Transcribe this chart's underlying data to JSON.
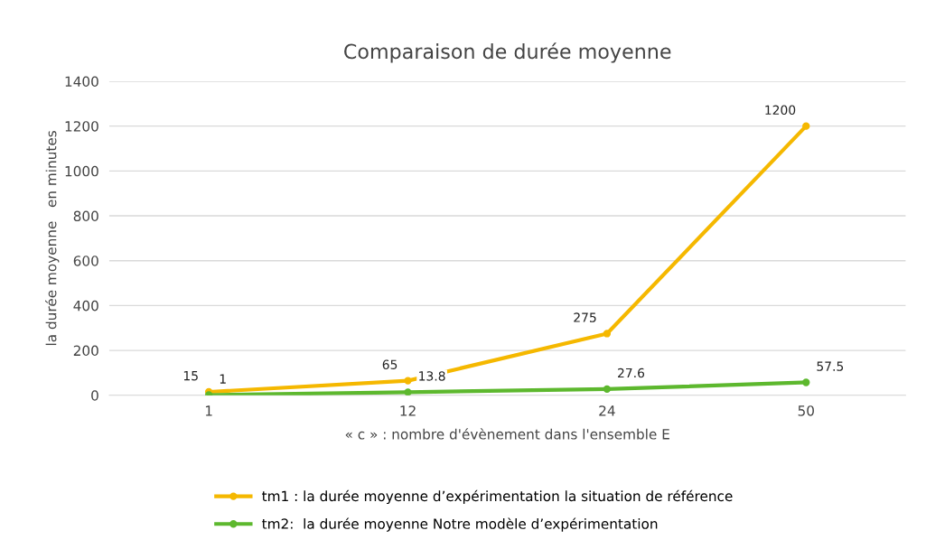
{
  "chart_data": {
    "type": "line",
    "title": "Comparaison de durée moyenne",
    "xlabel": "« c » : nombre d'évènement dans l'ensemble E",
    "ylabel": "la durée moyenne   en minutes",
    "categories": [
      "1",
      "12",
      "24",
      "50"
    ],
    "series": [
      {
        "name": "tm1 : la durée moyenne d’expérimentation la situation de référence",
        "color": "#f5b800",
        "values": [
          15,
          65,
          275,
          1200
        ]
      },
      {
        "name": "tm2:  la durée moyenne Notre modèle d’expérimentation",
        "color": "#5db82e",
        "values": [
          1,
          13.8,
          27.6,
          57.5
        ]
      }
    ],
    "ylim": [
      0,
      1400
    ],
    "yticks": [
      0,
      200,
      400,
      600,
      800,
      1000,
      1200,
      1400
    ],
    "grid": "y",
    "legend": "bottom",
    "marker": "circle",
    "data_labels": true
  }
}
